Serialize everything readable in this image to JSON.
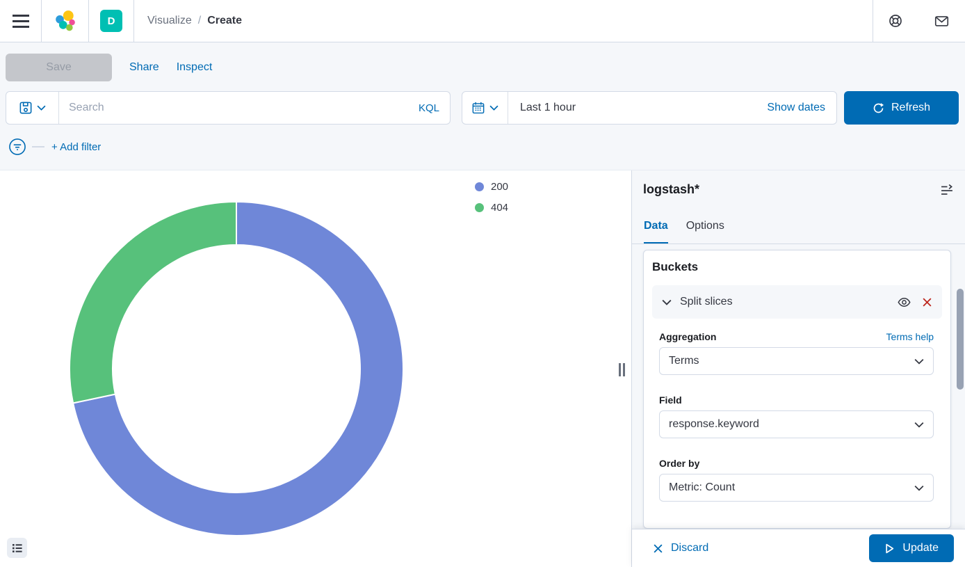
{
  "header": {
    "breadcrumbs": [
      {
        "label": "Visualize"
      },
      {
        "label": "Create"
      }
    ],
    "breadcrumb_separator": "/",
    "space_badge": "D"
  },
  "action_bar": {
    "save": "Save",
    "share": "Share",
    "inspect": "Inspect"
  },
  "query_bar": {
    "search_placeholder": "Search",
    "language_button": "KQL"
  },
  "time_bar": {
    "time_range": "Last 1 hour",
    "show_dates": "Show dates",
    "refresh": "Refresh"
  },
  "filter_bar": {
    "add_filter": "+ Add filter"
  },
  "side_panel": {
    "title": "logstash*",
    "tabs": [
      {
        "label": "Data"
      },
      {
        "label": "Options"
      }
    ],
    "active_tab": "Data",
    "buckets": {
      "heading": "Buckets",
      "bucket_type": "Split slices",
      "aggregation_label": "Aggregation",
      "help_link": "Terms help",
      "aggregation_value": "Terms",
      "field_label": "Field",
      "field_value": "response.keyword",
      "order_by_label": "Order by",
      "order_by_value": "Metric: Count"
    },
    "footer": {
      "discard": "Discard",
      "update": "Update"
    }
  },
  "chart_data": {
    "type": "pie",
    "subtype": "donut",
    "title": "",
    "slices": [
      {
        "label": "200",
        "percent": 71.7,
        "color": "#6F87D8"
      },
      {
        "label": "404",
        "percent": 28.3,
        "color": "#57C17B"
      }
    ],
    "legend_position": "right",
    "start_angle_deg": 0,
    "direction": "clockwise",
    "inner_radius_ratio": 0.74
  },
  "colors": {
    "primary_blue": "#006BB4",
    "accent_teal": "#00BFB3",
    "danger_red": "#BD271E",
    "slice_200": "#6F87D8",
    "slice_404": "#57C17B",
    "panel_bg": "#F5F7FA",
    "border": "#D3DAE6"
  }
}
